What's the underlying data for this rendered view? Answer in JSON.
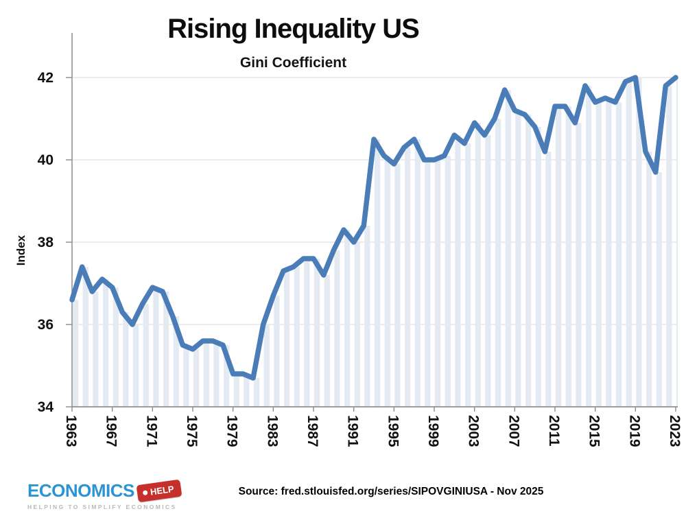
{
  "header": {
    "title": "Rising Inequality US",
    "subtitle": "Gini Coefficient"
  },
  "chart_data": {
    "type": "line",
    "title": "Rising Inequality US",
    "subtitle": "Gini Coefficient",
    "series_name": "US Gini coefficient (Index)",
    "xlabel": "",
    "ylabel": "Index",
    "ylim": [
      34,
      42.4
    ],
    "yticks": [
      34,
      36,
      38,
      40,
      42
    ],
    "xticks": [
      1963,
      1967,
      1971,
      1975,
      1979,
      1983,
      1987,
      1991,
      1995,
      1999,
      2003,
      2007,
      2011,
      2015,
      2019,
      2023
    ],
    "grid": true,
    "legend": "none",
    "background_columns": true,
    "line_color": "#4a7db8",
    "column_color": "#e3eaf2",
    "gridline_color": "#d9d9d9",
    "axis_color": "#8c8c8c",
    "x": [
      1963,
      1964,
      1965,
      1966,
      1967,
      1968,
      1969,
      1970,
      1971,
      1972,
      1973,
      1974,
      1975,
      1976,
      1977,
      1978,
      1979,
      1980,
      1981,
      1982,
      1983,
      1984,
      1985,
      1986,
      1987,
      1988,
      1989,
      1990,
      1991,
      1992,
      1993,
      1994,
      1995,
      1996,
      1997,
      1998,
      1999,
      2000,
      2001,
      2002,
      2003,
      2004,
      2005,
      2006,
      2007,
      2008,
      2009,
      2010,
      2011,
      2012,
      2013,
      2014,
      2015,
      2016,
      2017,
      2018,
      2019,
      2020,
      2021,
      2022,
      2023
    ],
    "values": [
      36.6,
      37.4,
      36.8,
      37.1,
      36.9,
      36.3,
      36.0,
      36.5,
      36.9,
      36.8,
      36.2,
      35.5,
      35.4,
      35.6,
      35.6,
      35.5,
      34.8,
      34.8,
      34.7,
      36.0,
      36.7,
      37.3,
      37.4,
      37.6,
      37.6,
      37.2,
      37.8,
      38.3,
      38.0,
      38.4,
      40.5,
      40.1,
      39.9,
      40.3,
      40.5,
      40.0,
      40.0,
      40.1,
      40.6,
      40.4,
      40.9,
      40.6,
      41.0,
      41.7,
      41.2,
      41.1,
      40.8,
      40.2,
      41.3,
      41.3,
      40.9,
      41.8,
      41.4,
      41.5,
      41.4,
      41.9,
      42.0,
      40.2,
      39.7,
      41.8,
      42.0
    ]
  },
  "footer": {
    "logo_text": "ECONOMICS",
    "logo_tag": "HELP",
    "logo_tagline": "HELPING TO SIMPLIFY ECONOMICS",
    "source": "Source: fred.stlouisfed.org/series/SIPOVGINIUSA - Nov 2025"
  }
}
